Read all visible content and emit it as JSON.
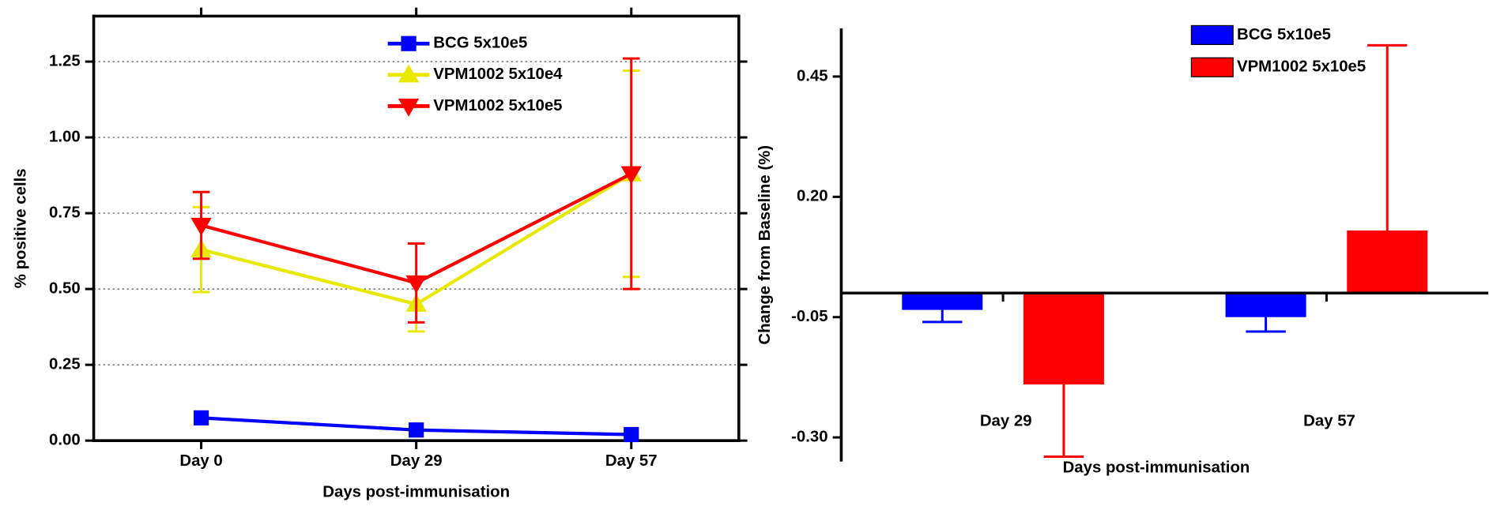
{
  "chart_data": [
    {
      "type": "line",
      "ylabel": "% positive cells",
      "xlabel": "Days post-immunisation",
      "categories": [
        "Day 0",
        "Day 29",
        "Day 57"
      ],
      "ylim": [
        0,
        1.4
      ],
      "yticks": [
        {
          "value": 0,
          "label": "0.00"
        },
        {
          "value": 0.25,
          "label": "0.25"
        },
        {
          "value": 0.5,
          "label": "0.50"
        },
        {
          "value": 0.75,
          "label": "0.75"
        },
        {
          "value": 1,
          "label": "1.00"
        },
        {
          "value": 1.25,
          "label": "1.25"
        }
      ],
      "grid": true,
      "legend": "top",
      "series": [
        {
          "name": "BCG 5x10e5",
          "color": "#0000ff",
          "marker": "square",
          "values": [
            0.075,
            0.035,
            0.02
          ]
        },
        {
          "name": "VPM1002 5x10e4",
          "color": "#e8e800",
          "marker": "triangle-up",
          "values": [
            0.63,
            0.45,
            0.88
          ],
          "errors": [
            0.14,
            0.09,
            0.34
          ]
        },
        {
          "name": "VPM1002 5x10e5",
          "color": "#ff0000",
          "marker": "triangle-down",
          "values": [
            0.71,
            0.52,
            0.88
          ],
          "errors": [
            0.11,
            0.13,
            0.38
          ]
        }
      ]
    },
    {
      "type": "bar",
      "ylabel": "Change from Baseline (%)",
      "xlabel": "Days post-immunisation",
      "categories": [
        "Day 29",
        "Day 57"
      ],
      "ylim": [
        -0.35,
        0.55
      ],
      "yticks": [
        {
          "value": -0.3,
          "label": "-0.30"
        },
        {
          "value": -0.05,
          "label": "-0.05"
        },
        {
          "value": 0.2,
          "label": "0.20"
        },
        {
          "value": 0.45,
          "label": "0.45"
        }
      ],
      "legend": "top-right",
      "series": [
        {
          "name": "BCG 5x10e5",
          "color": "#0000ff",
          "values": [
            -0.035,
            -0.05
          ],
          "errors": [
            0.025,
            0.03
          ]
        },
        {
          "name": "VPM1002 5x10e5",
          "color": "#ff0000",
          "values": [
            -0.19,
            0.13
          ],
          "errors": [
            0.15,
            0.385
          ]
        }
      ]
    }
  ]
}
